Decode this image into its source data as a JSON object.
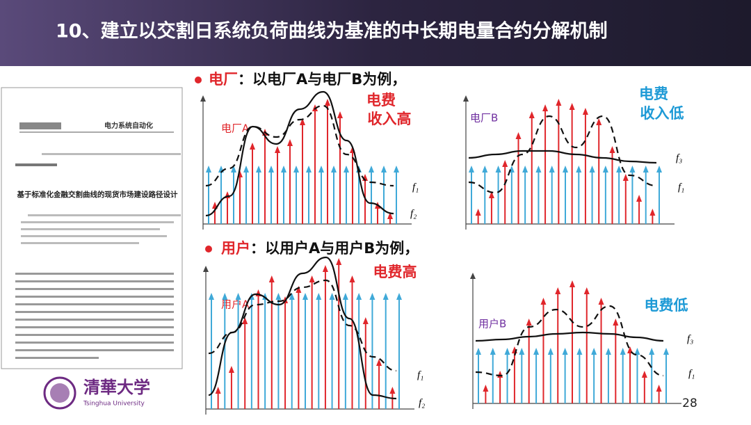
{
  "header": {
    "title": "10、建立以交割日系统负荷曲线为基准的中长期电量合约分解机制"
  },
  "section_plant": {
    "label": "电厂",
    "text": "：以电厂A与电厂B为例，",
    "panel_a": {
      "name": "电厂A",
      "note_line1": "电费",
      "note_line2": "收入高",
      "curve_1": "f₁",
      "curve_2": "f₂"
    },
    "panel_b": {
      "name": "电厂B",
      "note_line1": "电费",
      "note_line2": "收入低",
      "curve_3": "f₃",
      "curve_1": "f₁"
    }
  },
  "section_user": {
    "label": "用户",
    "text": "：以用户A与用户B为例，",
    "panel_a": {
      "name": "用户A",
      "note": "电费高",
      "curve_1": "f₁",
      "curve_2": "f₂"
    },
    "panel_b": {
      "name": "用户B",
      "note": "电费低",
      "curve_3": "f₃",
      "curve_1": "f₁"
    }
  },
  "paper": {
    "journal": "电力系统自动化",
    "title": "基于标准化金融交割曲线的现货市场建设路径设计"
  },
  "logo": {
    "name": "清華大学",
    "subtitle": "Tsinghua University"
  },
  "page_number": "28"
}
